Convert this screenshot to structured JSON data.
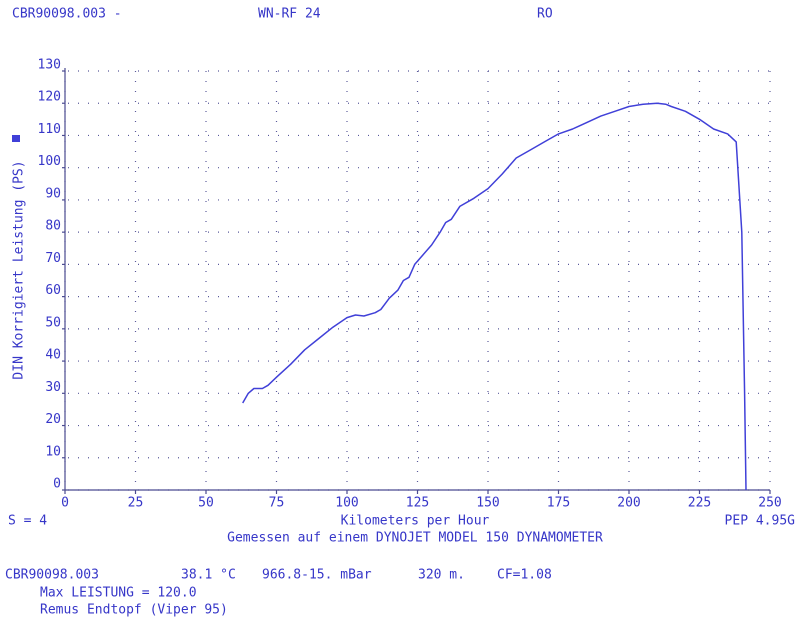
{
  "header": {
    "file": "CBR90098.003 -",
    "vehicle": "WN-RF 24",
    "code": "RO"
  },
  "chart_data": {
    "type": "line",
    "ylabel": "DIN Korrigiert Leistung (PS)",
    "xlabel": "Kilometers per Hour",
    "left_note": "S = 4",
    "right_note": "PEP 4.95G",
    "subtitle": "Gemessen auf einem DYNOJET MODEL 150 DYNAMOMETER",
    "color": "#4040d8",
    "grid": true,
    "xlim": [
      0,
      250
    ],
    "xticks": [
      0,
      25,
      50,
      75,
      100,
      125,
      150,
      175,
      200,
      225,
      250
    ],
    "ylim": [
      0,
      130
    ],
    "yticks": [
      0,
      10,
      20,
      30,
      40,
      50,
      60,
      70,
      80,
      90,
      100,
      110,
      120,
      130
    ],
    "x": [
      63,
      65,
      67,
      70,
      72,
      75,
      80,
      85,
      90,
      95,
      100,
      103,
      106,
      110,
      112,
      115,
      118,
      120,
      122,
      124,
      127,
      130,
      133,
      135,
      137,
      140,
      145,
      150,
      155,
      160,
      165,
      170,
      175,
      180,
      185,
      190,
      195,
      200,
      205,
      210,
      213,
      215,
      220,
      225,
      230,
      235,
      238,
      240,
      241,
      241.5
    ],
    "values": [
      27,
      30,
      31.5,
      31.5,
      32.5,
      35,
      39,
      43.5,
      47,
      50.5,
      53.5,
      54.3,
      54,
      55,
      56,
      59.5,
      62,
      65,
      66,
      70,
      73,
      76,
      80,
      83,
      84,
      88,
      90.5,
      93.5,
      98,
      103,
      105.5,
      108,
      110.5,
      112,
      114,
      116,
      117.5,
      119,
      119.7,
      120,
      119.7,
      119,
      117.5,
      115,
      112,
      110.5,
      108,
      80,
      30,
      0
    ]
  },
  "footer": {
    "file": "CBR90098.003",
    "temp": "38.1 °C",
    "pressure": "966.8-15. mBar",
    "altitude": "320 m.",
    "cf": "CF=1.08",
    "max": "Max LEISTUNG = 120.0",
    "note": "Remus Endtopf (Viper 95)"
  }
}
